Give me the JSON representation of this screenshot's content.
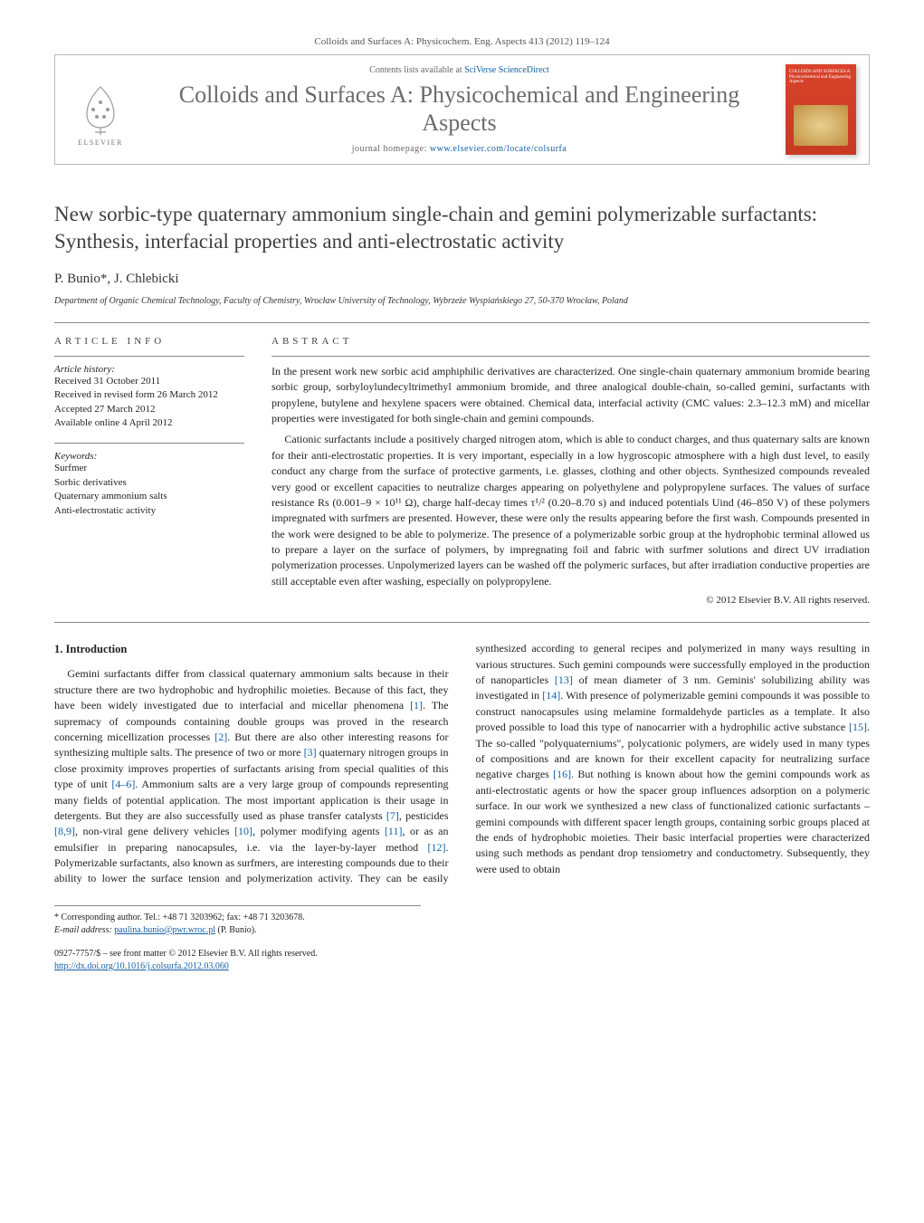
{
  "citation": "Colloids and Surfaces A: Physicochem. Eng. Aspects 413 (2012) 119–124",
  "header": {
    "contents_prefix": "Contents lists available at ",
    "contents_link": "SciVerse ScienceDirect",
    "journal_title": "Colloids and Surfaces A: Physicochemical and Engineering Aspects",
    "homepage_prefix": "journal homepage: ",
    "homepage_url": "www.elsevier.com/locate/colsurfa",
    "publisher_name": "ELSEVIER",
    "cover_text": "COLLOIDS AND SURFACES A Physicochemical and Engineering Aspects"
  },
  "article": {
    "title": "New sorbic-type quaternary ammonium single-chain and gemini polymerizable surfactants: Synthesis, interfacial properties and anti-electrostatic activity",
    "authors": "P. Bunio*, J. Chlebicki",
    "affiliation": "Department of Organic Chemical Technology, Faculty of Chemistry, Wrocław University of Technology, Wybrzeże Wyspiańskiego 27, 50-370 Wrocław, Poland"
  },
  "info": {
    "heading": "ARTICLE INFO",
    "history_label": "Article history:",
    "history": [
      "Received 31 October 2011",
      "Received in revised form 26 March 2012",
      "Accepted 27 March 2012",
      "Available online 4 April 2012"
    ],
    "keywords_label": "Keywords:",
    "keywords": [
      "Surfmer",
      "Sorbic derivatives",
      "Quaternary ammonium salts",
      "Anti-electrostatic activity"
    ]
  },
  "abstract": {
    "heading": "ABSTRACT",
    "p1": "In the present work new sorbic acid amphiphilic derivatives are characterized. One single-chain quaternary ammonium bromide bearing sorbic group, sorbyloylundecyltrimethyl ammonium bromide, and three analogical double-chain, so-called gemini, surfactants with propylene, butylene and hexylene spacers were obtained. Chemical data, interfacial activity (CMC values: 2.3–12.3 mM) and micellar properties were investigated for both single-chain and gemini compounds.",
    "p2": "Cationic surfactants include a positively charged nitrogen atom, which is able to conduct charges, and thus quaternary salts are known for their anti-electrostatic properties. It is very important, especially in a low hygroscopic atmosphere with a high dust level, to easily conduct any charge from the surface of protective garments, i.e. glasses, clothing and other objects. Synthesized compounds revealed very good or excellent capacities to neutralize charges appearing on polyethylene and polypropylene surfaces. The values of surface resistance Rs (0.001–9 × 10¹¹ Ω), charge half-decay times τ¹/² (0.20–8.70 s) and induced potentials Uind (46–850 V) of these polymers impregnated with surfmers are presented. However, these were only the results appearing before the first wash. Compounds presented in the work were designed to be able to polymerize. The presence of a polymerizable sorbic group at the hydrophobic terminal allowed us to prepare a layer on the surface of polymers, by impregnating foil and fabric with surfmer solutions and direct UV irradiation polymerization processes. Unpolymerized layers can be washed off the polymeric surfaces, but after irradiation conductive properties are still acceptable even after washing, especially on polypropylene.",
    "copyright": "© 2012 Elsevier B.V. All rights reserved."
  },
  "body": {
    "section_heading": "1. Introduction",
    "text": "Gemini surfactants differ from classical quaternary ammonium salts because in their structure there are two hydrophobic and hydrophilic moieties. Because of this fact, they have been widely investigated due to interfacial and micellar phenomena [1]. The supremacy of compounds containing double groups was proved in the research concerning micellization processes [2]. But there are also other interesting reasons for synthesizing multiple salts. The presence of two or more [3] quaternary nitrogen groups in close proximity improves properties of surfactants arising from special qualities of this type of unit [4–6]. Ammonium salts are a very large group of compounds representing many fields of potential application. The most important application is their usage in detergents. But they are also successfully used as phase transfer catalysts [7], pesticides [8,9], non-viral gene delivery vehicles [10], polymer modifying agents [11], or as an emulsifier in preparing nanocapsules, i.e. via the layer-by-layer method [12]. Polymerizable surfactants, also known as surfmers, are interesting compounds due to their ability to lower the surface tension and polymerization activity. They can be easily synthesized according to general recipes and polymerized in many ways resulting in various structures. Such gemini compounds were successfully employed in the production of nanoparticles [13] of mean diameter of 3 nm. Geminis' solubilizing ability was investigated in [14]. With presence of polymerizable gemini compounds it was possible to construct nanocapsules using melamine formaldehyde particles as a template. It also proved possible to load this type of nanocarrier with a hydrophilic active substance [15]. The so-called \"polyquaterniums\", polycationic polymers, are widely used in many types of compositions and are known for their excellent capacity for neutralizing surface negative charges [16]. But nothing is known about how the gemini compounds work as anti-electrostatic agents or how the spacer group influences adsorption on a polymeric surface. In our work we synthesized a new class of functionalized cationic surfactants – gemini compounds with different spacer length groups, containing sorbic groups placed at the ends of hydrophobic moieties. Their basic interfacial properties were characterized using such methods as pendant drop tensiometry and conductometry. Subsequently, they were used to obtain"
  },
  "footnotes": {
    "corr": "* Corresponding author. Tel.: +48 71 3203962; fax: +48 71 3203678.",
    "email_label": "E-mail address: ",
    "email": "paulina.bunio@pwr.wroc.pl",
    "email_suffix": " (P. Bunio)."
  },
  "footer": {
    "issn": "0927-7757/$ – see front matter © 2012 Elsevier B.V. All rights reserved.",
    "doi": "http://dx.doi.org/10.1016/j.colsurfa.2012.03.060"
  },
  "refs": [
    "[1]",
    "[2]",
    "[3]",
    "[4–6]",
    "[7]",
    "[8,9]",
    "[10]",
    "[11]",
    "[12]",
    "[13]",
    "[14]",
    "[15]",
    "[16]"
  ],
  "ref_color": "#1360a6"
}
